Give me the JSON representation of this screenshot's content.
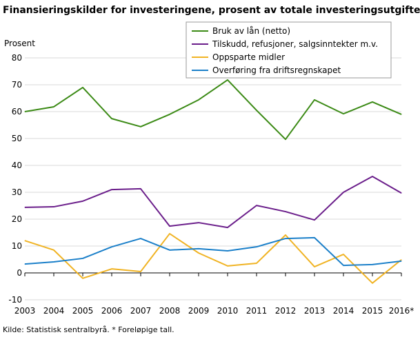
{
  "chart_data": {
    "type": "line",
    "title": "Finansieringskilder for investeringene, prosent av totale investeringsutgifter",
    "ylabel": "Prosent",
    "xlabel": "",
    "categories": [
      "2003",
      "2004",
      "2005",
      "2006",
      "2007",
      "2008",
      "2009",
      "2010",
      "2011",
      "2012",
      "2013",
      "2014",
      "2015",
      "2016*"
    ],
    "ylim": [
      -10,
      80
    ],
    "yticks": [
      -10,
      0,
      10,
      20,
      30,
      40,
      50,
      60,
      70,
      80
    ],
    "grid": true,
    "legend_position": "top-right",
    "series": [
      {
        "name": "Bruk av lån (netto)",
        "color": "#3b8a15",
        "values": [
          60,
          61.8,
          69,
          57.4,
          54.4,
          59,
          64.4,
          71.8,
          60.5,
          49.7,
          64.4,
          59.2,
          63.6,
          59
        ]
      },
      {
        "name": "Tilskudd, refusjoner, salgsinntekter m.v.",
        "color": "#6a1d8a",
        "values": [
          24.4,
          24.6,
          26.7,
          31,
          31.3,
          17.4,
          18.7,
          16.9,
          25.1,
          22.8,
          19.7,
          30,
          35.9,
          29.7
        ]
      },
      {
        "name": "Oppsparte midler",
        "color": "#f0b323",
        "values": [
          12,
          8.5,
          -2,
          1.5,
          0.5,
          14.6,
          7.4,
          2.6,
          3.6,
          14.1,
          2.3,
          6.9,
          -3.8,
          4.9
        ]
      },
      {
        "name": "Overføring fra driftsregnskapet",
        "color": "#1a7fc9",
        "values": [
          3.3,
          4.1,
          5.4,
          9.7,
          12.8,
          8.5,
          9,
          8.2,
          9.7,
          12.8,
          13.1,
          2.8,
          3.1,
          4.4
        ]
      }
    ],
    "source": "Kilde: Statistisk sentralbyrå. * Foreløpige tall."
  }
}
